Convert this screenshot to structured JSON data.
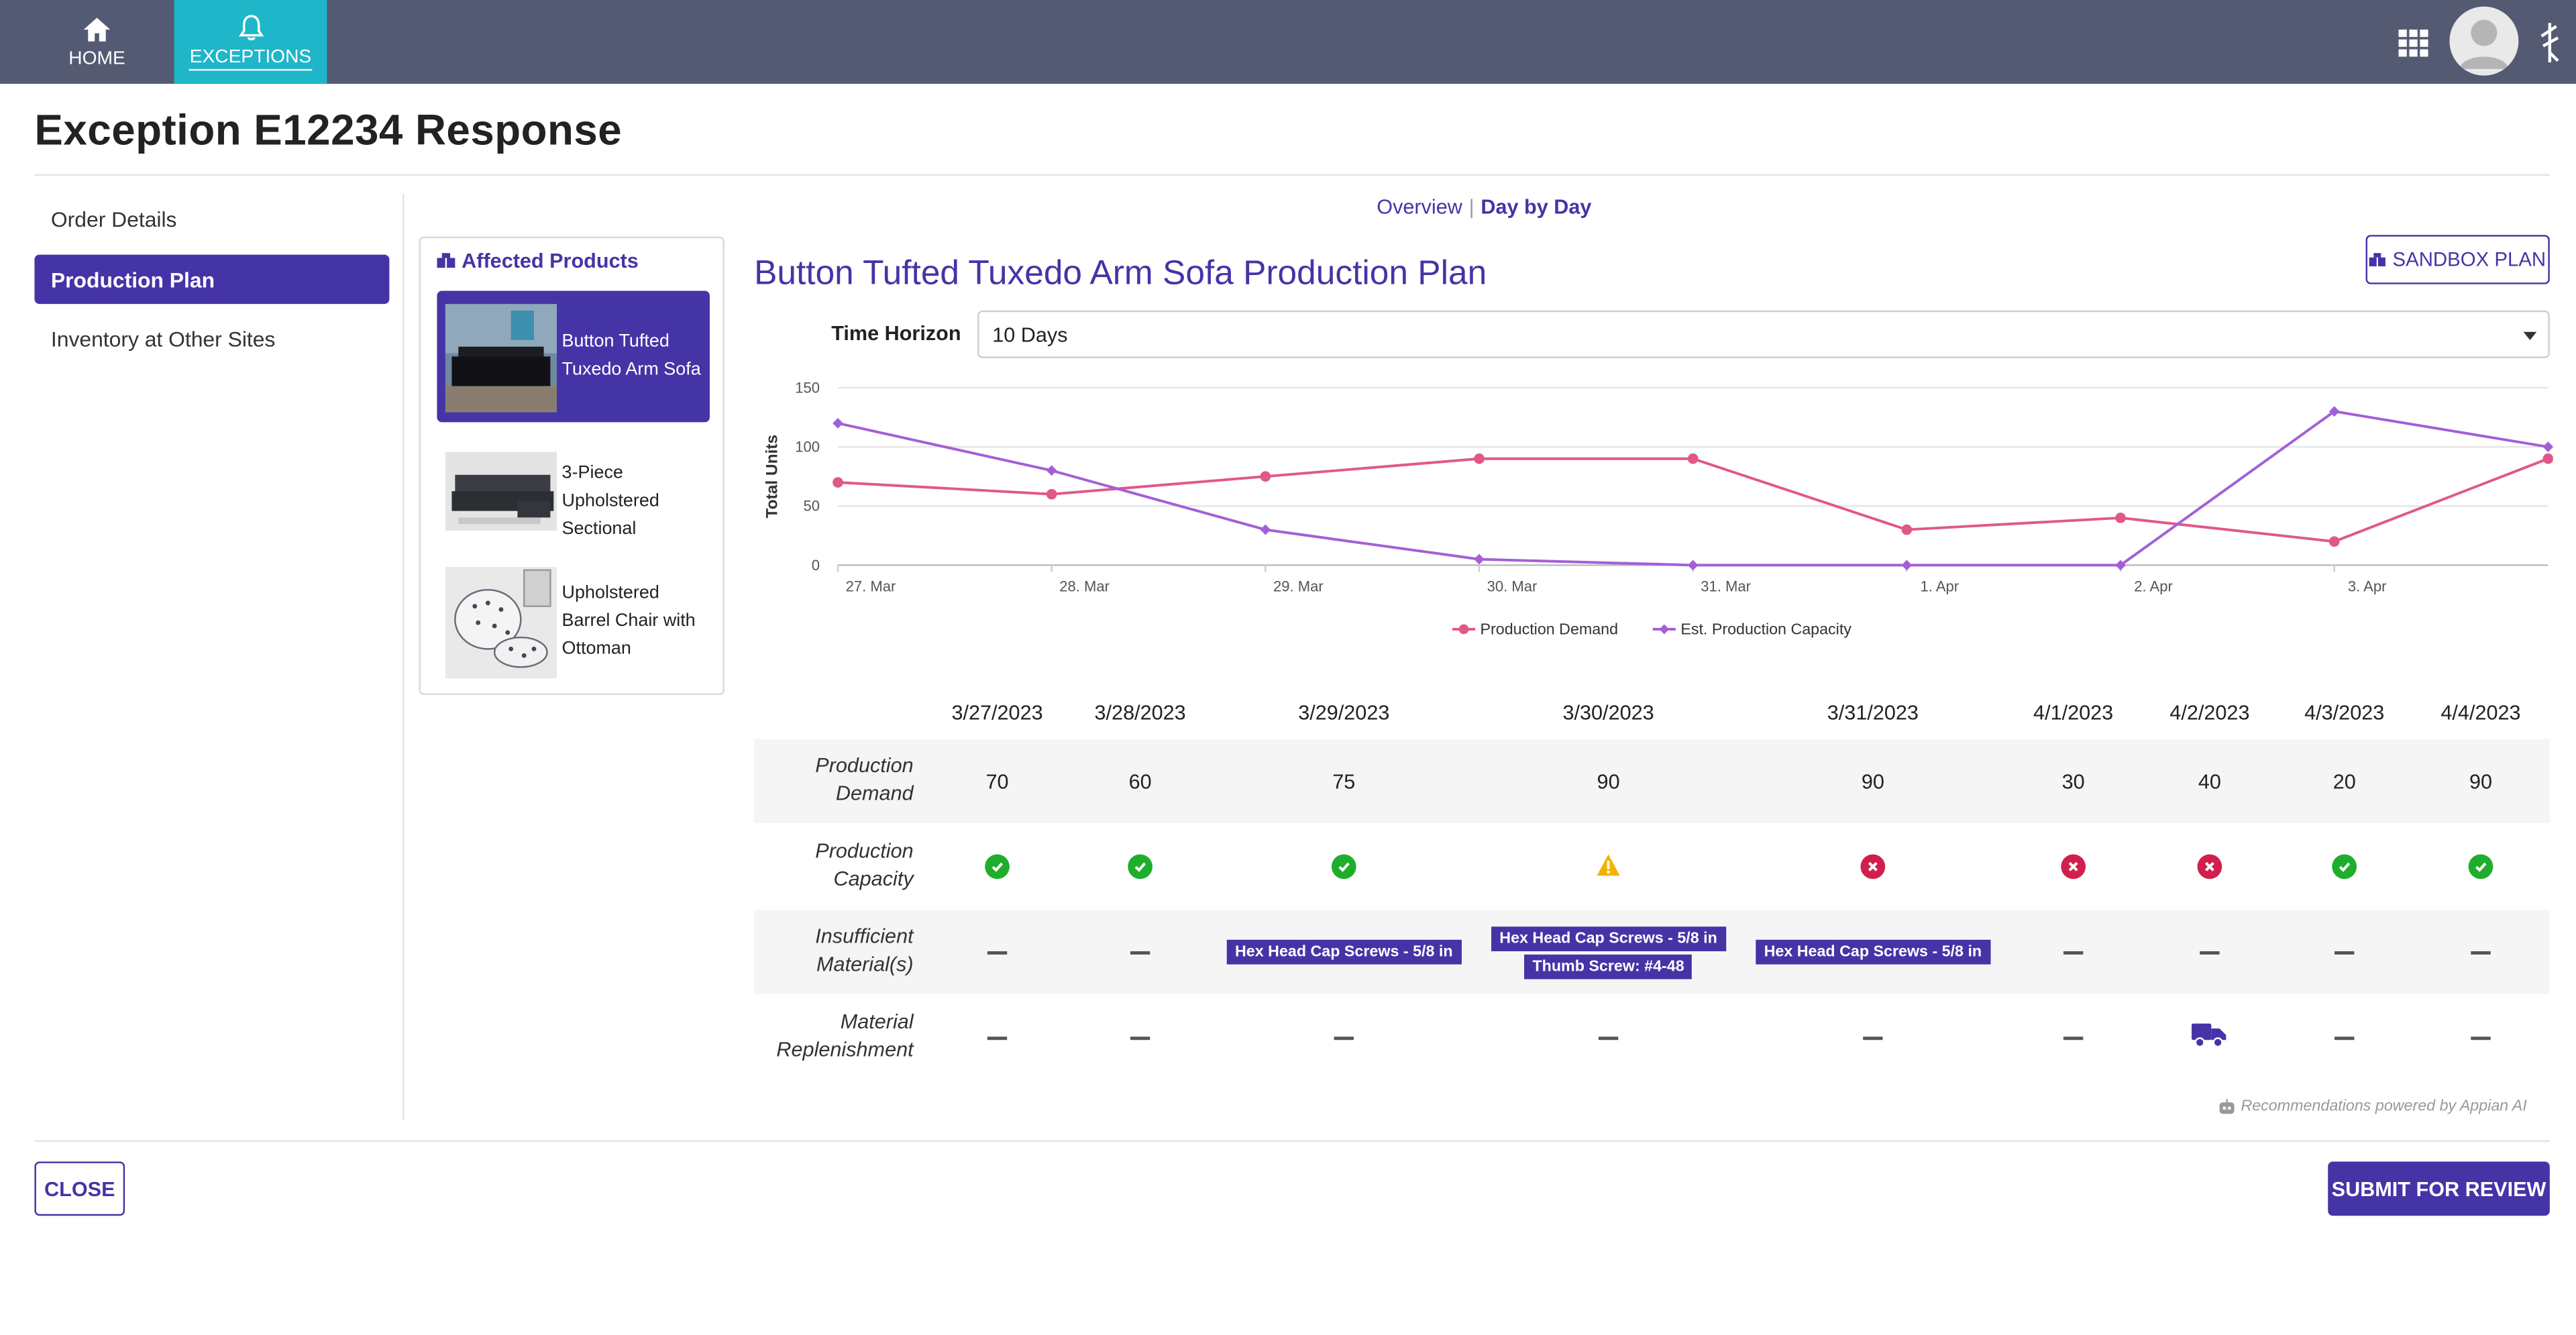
{
  "nav": {
    "home_label": "HOME",
    "exceptions_label": "EXCEPTIONS"
  },
  "page": {
    "title": "Exception E12234 Response"
  },
  "sidebar": {
    "items": [
      {
        "label": "Order Details",
        "active": false
      },
      {
        "label": "Production Plan",
        "active": true
      },
      {
        "label": "Inventory at Other Sites",
        "active": false
      }
    ]
  },
  "affected_products": {
    "title": "Affected Products",
    "items": [
      {
        "name": "Button Tufted Tuxedo Arm Sofa",
        "selected": true
      },
      {
        "name": "3-Piece Upholstered Sectional",
        "selected": false
      },
      {
        "name": "Upholstered Barrel Chair with Ottoman",
        "selected": false
      }
    ]
  },
  "view_toggle": {
    "overview": "Overview",
    "separator": "|",
    "day_by_day": "Day by Day"
  },
  "plan": {
    "title": "Button Tufted Tuxedo Arm Sofa Production Plan",
    "sandbox_label": "SANDBOX PLAN",
    "time_horizon_label": "Time Horizon",
    "time_horizon_value": "10 Days"
  },
  "chart_data": {
    "type": "line",
    "ylabel": "Total Units",
    "xlabel": "",
    "ylim": [
      0,
      150
    ],
    "yticks": [
      0,
      50,
      100,
      150
    ],
    "x_tick_labels": [
      "27. Mar",
      "28. Mar",
      "29. Mar",
      "30. Mar",
      "31. Mar",
      "1. Apr",
      "2. Apr",
      "3. Apr"
    ],
    "x": [
      "3/27/2023",
      "3/28/2023",
      "3/29/2023",
      "3/30/2023",
      "3/31/2023",
      "4/1/2023",
      "4/2/2023",
      "4/3/2023",
      "4/4/2023"
    ],
    "grid": true,
    "legend_position": "bottom-center",
    "series": [
      {
        "name": "Production Demand",
        "color": "#e0588a",
        "values": [
          70,
          60,
          75,
          90,
          90,
          30,
          40,
          20,
          90
        ]
      },
      {
        "name": "Est. Production Capacity",
        "color": "#a35fd6",
        "values": [
          120,
          80,
          30,
          5,
          0,
          0,
          0,
          130,
          100
        ]
      }
    ]
  },
  "table": {
    "dates": [
      "3/27/2023",
      "3/28/2023",
      "3/29/2023",
      "3/30/2023",
      "3/31/2023",
      "4/1/2023",
      "4/2/2023",
      "4/3/2023",
      "4/4/2023"
    ],
    "row_labels": {
      "demand": [
        "Production",
        "Demand"
      ],
      "capacity": [
        "Production",
        "Capacity"
      ],
      "materials": [
        "Insufficient",
        "Material(s)"
      ],
      "replenishment": [
        "Material",
        "Replenishment"
      ]
    },
    "demand": [
      "70",
      "60",
      "75",
      "90",
      "90",
      "30",
      "40",
      "20",
      "90"
    ],
    "capacity_status": [
      "ok",
      "ok",
      "ok",
      "warning",
      "error",
      "error",
      "error",
      "ok",
      "ok"
    ],
    "materials": [
      [],
      [],
      [
        "Hex Head Cap Screws - 5/8 in"
      ],
      [
        "Hex Head Cap Screws - 5/8 in",
        "Thumb Screw: #4-48"
      ],
      [
        "Hex Head Cap Screws - 5/8 in"
      ],
      [],
      [],
      [],
      []
    ],
    "replenishment": [
      "none",
      "none",
      "none",
      "none",
      "none",
      "none",
      "truck-icon",
      "none",
      "none"
    ]
  },
  "ai_note": "Recommendations powered by Appian AI",
  "footer": {
    "close_label": "CLOSE",
    "submit_label": "SUBMIT FOR REVIEW"
  },
  "colors": {
    "accent": "#4534a6",
    "active_tab": "#1eb6c8",
    "topbar": "#545a72",
    "ok": "#1fae2b",
    "error": "#d11f4d",
    "warning": "#f0b400"
  }
}
